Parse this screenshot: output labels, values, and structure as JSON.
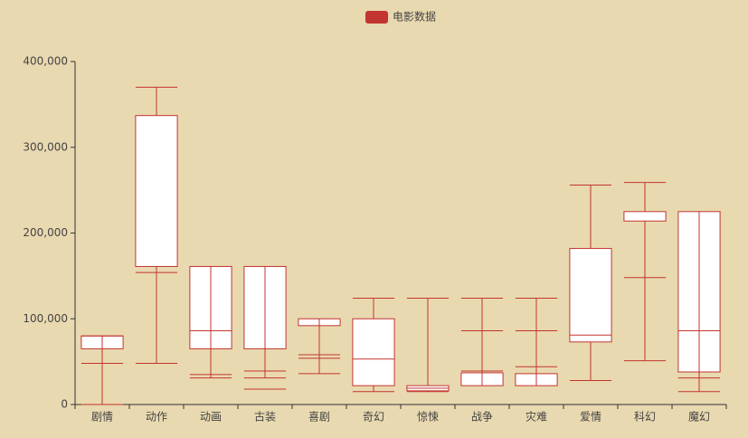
{
  "chart_data": {
    "type": "boxplot",
    "categories": [
      "剧情",
      "动作",
      "动画",
      "古装",
      "喜剧",
      "奇幻",
      "惊悚",
      "战争",
      "灾难",
      "爱情",
      "科幻",
      "魔幻"
    ],
    "series": [
      {
        "name": "电影数据",
        "color": "#c23531",
        "values": [
          [
            48000,
            65000,
            80000,
            80000,
            0
          ],
          [
            48000,
            161000,
            154000,
            337000,
            370000
          ],
          [
            35000,
            65000,
            86000,
            161000,
            31000
          ],
          [
            39000,
            65000,
            18000,
            161000,
            31000
          ],
          [
            36000,
            92000,
            54000,
            100000,
            58000
          ],
          [
            124000,
            100000,
            53000,
            22000,
            15000
          ],
          [
            124000,
            22000,
            19000,
            16000,
            15000
          ],
          [
            124000,
            37000,
            86000,
            22000,
            39000
          ],
          [
            124000,
            36000,
            86000,
            22000,
            44000
          ],
          [
            256000,
            182000,
            81000,
            73000,
            28000
          ],
          [
            259000,
            225000,
            148000,
            214000,
            51000
          ],
          [
            15000,
            38000,
            86000,
            225000,
            31000
          ]
        ]
      }
    ],
    "ylim": [
      0,
      400000
    ],
    "yticks": [
      0,
      {
        "value": 100000,
        "label": "100,000"
      },
      {
        "value": 200000,
        "label": "200,000"
      },
      {
        "value": 300000,
        "label": "300,000"
      },
      {
        "value": 400000,
        "label": "400,000"
      }
    ],
    "grid": false,
    "legend": "top"
  }
}
